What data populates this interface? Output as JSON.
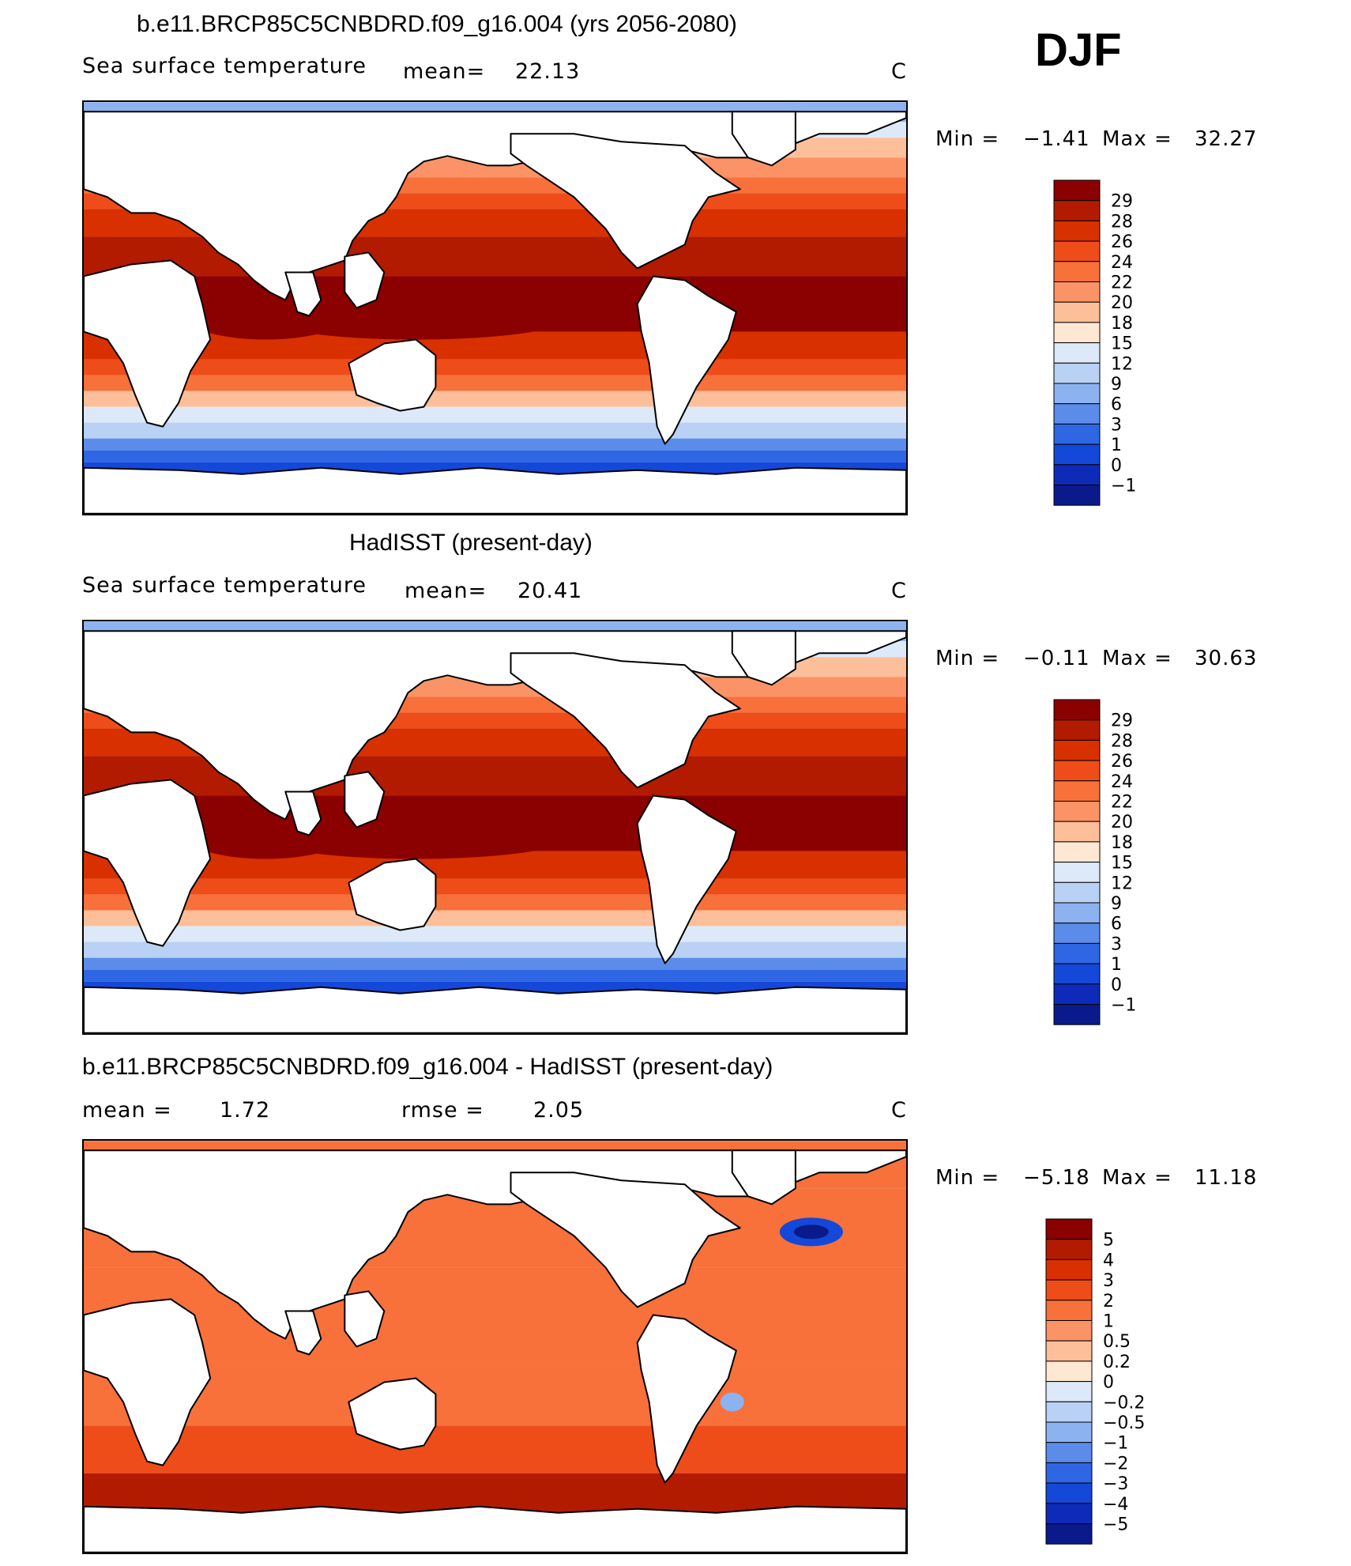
{
  "season": "DJF",
  "panels": [
    {
      "title": "b.e11.BRCP85C5CNBDRD.f09_g16.004 (yrs 2056-2080)",
      "variable": "Sea surface temperature",
      "stat1_label": "mean=",
      "stat1_value": "22.13",
      "stat2_label": "",
      "stat2_value": "",
      "units": "C",
      "min_label": "Min =",
      "min_value": "−1.41",
      "max_label": "Max =",
      "max_value": "32.27",
      "type": "absolute",
      "colorbar": {
        "labels": [
          "29",
          "28",
          "26",
          "24",
          "22",
          "20",
          "18",
          "15",
          "12",
          "9",
          "6",
          "3",
          "1",
          "0",
          "−1"
        ],
        "colors": [
          "#8b0000",
          "#b31b00",
          "#d93000",
          "#ee4d1a",
          "#f8703a",
          "#fb9366",
          "#fdbf9a",
          "#fee7d3",
          "#dde9f8",
          "#b8d1f5",
          "#8cb2f0",
          "#5b8cea",
          "#2f66e3",
          "#1448d9",
          "#0d2bb8",
          "#0a1a8a"
        ]
      }
    },
    {
      "title": "HadISST (present-day)",
      "variable": "Sea surface temperature",
      "stat1_label": "mean=",
      "stat1_value": "20.41",
      "stat2_label": "",
      "stat2_value": "",
      "units": "C",
      "min_label": "Min =",
      "min_value": "−0.11",
      "max_label": "Max =",
      "max_value": "30.63",
      "type": "absolute",
      "colorbar": {
        "labels": [
          "29",
          "28",
          "26",
          "24",
          "22",
          "20",
          "18",
          "15",
          "12",
          "9",
          "6",
          "3",
          "1",
          "0",
          "−1"
        ],
        "colors": [
          "#8b0000",
          "#b31b00",
          "#d93000",
          "#ee4d1a",
          "#f8703a",
          "#fb9366",
          "#fdbf9a",
          "#fee7d3",
          "#dde9f8",
          "#b8d1f5",
          "#8cb2f0",
          "#5b8cea",
          "#2f66e3",
          "#1448d9",
          "#0d2bb8",
          "#0a1a8a"
        ]
      }
    },
    {
      "title": "b.e11.BRCP85C5CNBDRD.f09_g16.004 - HadISST (present-day)",
      "variable": "",
      "stat1_label": "mean =",
      "stat1_value": "1.72",
      "stat2_label": "rmse =",
      "stat2_value": "2.05",
      "units": "C",
      "min_label": "Min =",
      "min_value": "−5.18",
      "max_label": "Max =",
      "max_value": "11.18",
      "type": "difference",
      "colorbar": {
        "labels": [
          "5",
          "4",
          "3",
          "2",
          "1",
          "0.5",
          "0.2",
          "0",
          "−0.2",
          "−0.5",
          "−1",
          "−2",
          "−3",
          "−4",
          "−5"
        ],
        "colors": [
          "#8b0000",
          "#b31b00",
          "#d93000",
          "#ee4d1a",
          "#f8703a",
          "#fb9366",
          "#fdbf9a",
          "#fee7d3",
          "#dde9f8",
          "#b8d1f5",
          "#8cb2f0",
          "#5b8cea",
          "#2f66e3",
          "#1448d9",
          "#0d2bb8",
          "#0a1a8a"
        ]
      }
    }
  ]
}
